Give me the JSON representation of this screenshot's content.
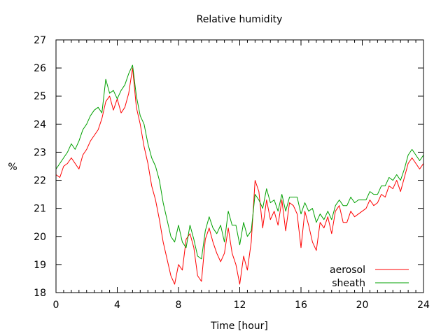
{
  "chart_data": {
    "type": "line",
    "title": "Relative humidity",
    "xlabel": "Time [hour]",
    "ylabel": "%",
    "xlim": [
      0,
      24
    ],
    "ylim": [
      18,
      27
    ],
    "xticks": [
      0,
      4,
      8,
      12,
      16,
      20,
      24
    ],
    "yticks": [
      18,
      19,
      20,
      21,
      22,
      23,
      24,
      25,
      26,
      27
    ],
    "grid": false,
    "legend_position": "bottom-right",
    "series": [
      {
        "name": "aerosol",
        "color": "#ff0000",
        "x": [
          0,
          0.25,
          0.5,
          0.75,
          1,
          1.25,
          1.5,
          1.75,
          2,
          2.25,
          2.5,
          2.75,
          3,
          3.25,
          3.5,
          3.75,
          4,
          4.25,
          4.5,
          4.75,
          5,
          5.25,
          5.5,
          5.75,
          6,
          6.25,
          6.5,
          6.75,
          7,
          7.25,
          7.5,
          7.75,
          8,
          8.25,
          8.5,
          8.75,
          9,
          9.25,
          9.5,
          9.75,
          10,
          10.25,
          10.5,
          10.75,
          11,
          11.25,
          11.5,
          11.75,
          12,
          12.25,
          12.5,
          12.75,
          13,
          13.25,
          13.5,
          13.75,
          14,
          14.25,
          14.5,
          14.75,
          15,
          15.25,
          15.5,
          15.75,
          16,
          16.25,
          16.5,
          16.75,
          17,
          17.25,
          17.5,
          17.75,
          18,
          18.25,
          18.5,
          18.75,
          19,
          19.25,
          19.5,
          19.75,
          20,
          20.25,
          20.5,
          20.75,
          21,
          21.25,
          21.5,
          21.75,
          22,
          22.25,
          22.5,
          22.75,
          23,
          23.25,
          23.5,
          23.75,
          24
        ],
        "values": [
          22.2,
          22.1,
          22.5,
          22.6,
          22.8,
          22.6,
          22.4,
          22.9,
          23.1,
          23.4,
          23.6,
          23.8,
          24.2,
          24.8,
          25.0,
          24.5,
          24.9,
          24.4,
          24.6,
          25.1,
          26.0,
          24.6,
          24.0,
          23.2,
          22.6,
          21.8,
          21.3,
          20.6,
          19.8,
          19.2,
          18.6,
          18.3,
          19.0,
          18.8,
          19.9,
          20.1,
          19.6,
          18.6,
          18.4,
          19.9,
          20.3,
          19.8,
          19.4,
          19.1,
          19.4,
          20.3,
          19.4,
          19.0,
          18.3,
          19.3,
          18.8,
          19.8,
          22.0,
          21.6,
          20.3,
          21.3,
          20.6,
          20.9,
          20.4,
          21.3,
          20.2,
          21.2,
          21.1,
          20.8,
          19.6,
          20.9,
          20.4,
          19.8,
          19.5,
          20.5,
          20.3,
          20.7,
          20.1,
          20.9,
          21.1,
          20.5,
          20.5,
          20.9,
          20.7,
          20.8,
          20.9,
          21.0,
          21.3,
          21.1,
          21.2,
          21.5,
          21.4,
          21.8,
          21.7,
          22.0,
          21.6,
          22.1,
          22.6,
          22.8,
          22.6,
          22.4,
          22.6
        ]
      },
      {
        "name": "sheath",
        "color": "#00a000",
        "x": [
          0,
          0.25,
          0.5,
          0.75,
          1,
          1.25,
          1.5,
          1.75,
          2,
          2.25,
          2.5,
          2.75,
          3,
          3.25,
          3.5,
          3.75,
          4,
          4.25,
          4.5,
          4.75,
          5,
          5.25,
          5.5,
          5.75,
          6,
          6.25,
          6.5,
          6.75,
          7,
          7.25,
          7.5,
          7.75,
          8,
          8.25,
          8.5,
          8.75,
          9,
          9.25,
          9.5,
          9.75,
          10,
          10.25,
          10.5,
          10.75,
          11,
          11.25,
          11.5,
          11.75,
          12,
          12.25,
          12.5,
          12.75,
          13,
          13.25,
          13.5,
          13.75,
          14,
          14.25,
          14.5,
          14.75,
          15,
          15.25,
          15.5,
          15.75,
          16,
          16.25,
          16.5,
          16.75,
          17,
          17.25,
          17.5,
          17.75,
          18,
          18.25,
          18.5,
          18.75,
          19,
          19.25,
          19.5,
          19.75,
          20,
          20.25,
          20.5,
          20.75,
          21,
          21.25,
          21.5,
          21.75,
          22,
          22.25,
          22.5,
          22.75,
          23,
          23.25,
          23.5,
          23.75,
          24
        ],
        "values": [
          22.4,
          22.6,
          22.8,
          23.0,
          23.3,
          23.1,
          23.4,
          23.8,
          24.0,
          24.3,
          24.5,
          24.6,
          24.4,
          25.6,
          25.1,
          25.2,
          24.9,
          25.2,
          25.4,
          25.8,
          26.1,
          25.0,
          24.3,
          24.0,
          23.3,
          22.8,
          22.5,
          22.0,
          21.2,
          20.6,
          20.0,
          19.8,
          20.4,
          19.8,
          19.6,
          20.4,
          19.9,
          19.3,
          19.2,
          20.2,
          20.7,
          20.3,
          20.1,
          20.4,
          19.8,
          20.9,
          20.4,
          20.4,
          19.7,
          20.5,
          20.0,
          20.2,
          21.5,
          21.3,
          21.0,
          21.7,
          21.2,
          21.3,
          20.9,
          21.5,
          20.9,
          21.4,
          21.4,
          21.4,
          20.8,
          21.2,
          20.9,
          21.0,
          20.5,
          20.8,
          20.6,
          20.9,
          20.6,
          21.1,
          21.3,
          21.1,
          21.1,
          21.4,
          21.2,
          21.3,
          21.3,
          21.3,
          21.6,
          21.5,
          21.5,
          21.8,
          21.8,
          22.1,
          22.0,
          22.2,
          22.0,
          22.4,
          22.9,
          23.1,
          22.9,
          22.7,
          22.9
        ]
      }
    ]
  }
}
